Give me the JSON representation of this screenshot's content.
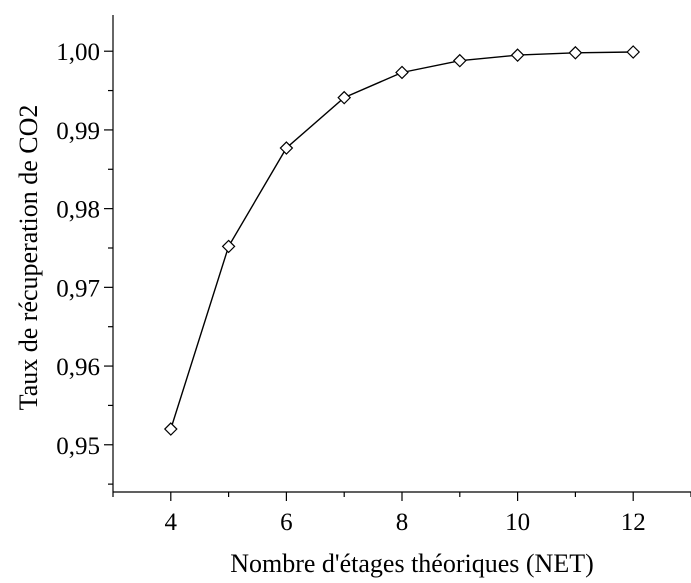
{
  "chart_data": {
    "type": "line",
    "title": "",
    "xlabel": "Nombre d'étages théoriques (NET)",
    "ylabel": "Taux de récuperation de CO2",
    "xlim": [
      3,
      13
    ],
    "ylim": [
      0.944,
      1.0046
    ],
    "x_ticks": [
      4,
      6,
      8,
      10,
      12
    ],
    "y_ticks": [
      0.95,
      0.96,
      0.97,
      0.98,
      0.99,
      1.0
    ],
    "y_tick_labels": [
      "0,95",
      "0,96",
      "0,97",
      "0,98",
      "0,99",
      "1,00"
    ],
    "grid": false,
    "series": [
      {
        "marker": "diamond-open",
        "x": [
          4,
          5,
          6,
          7,
          8,
          9,
          10,
          11,
          12
        ],
        "y": [
          0.952,
          0.9752,
          0.9877,
          0.9941,
          0.9973,
          0.9988,
          0.9995,
          0.9998,
          0.9999
        ]
      }
    ]
  }
}
